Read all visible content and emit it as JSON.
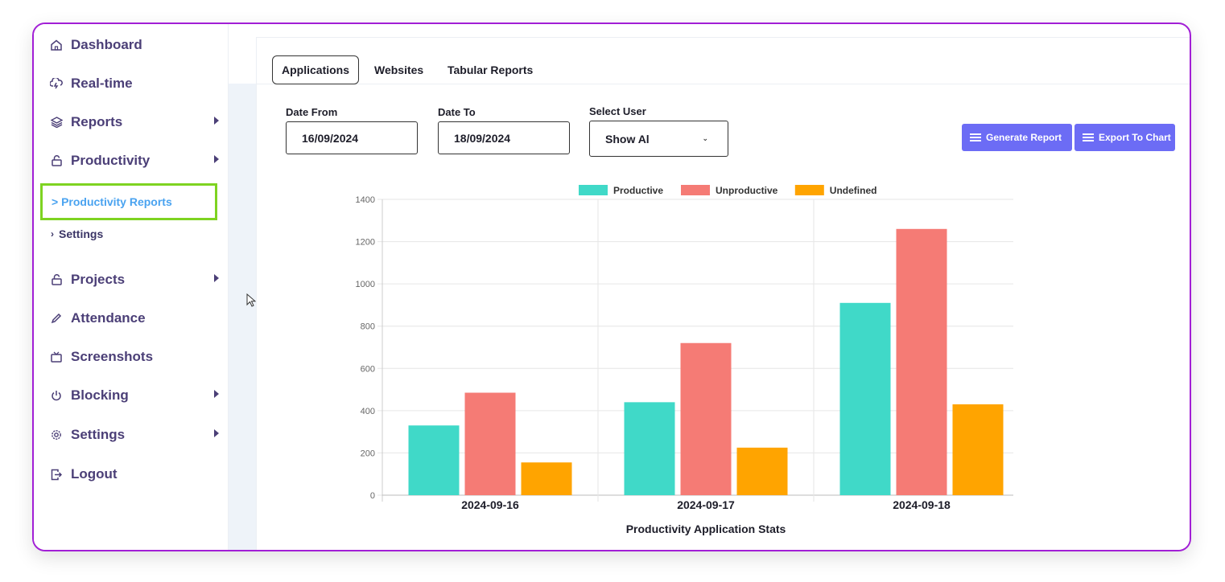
{
  "sidebar": {
    "items": [
      {
        "label": "Dashboard",
        "icon": "home-icon",
        "caret": false
      },
      {
        "label": "Real-time",
        "icon": "cloud-lightning-icon",
        "caret": false
      },
      {
        "label": "Reports",
        "icon": "layers-icon",
        "caret": true
      },
      {
        "label": "Productivity",
        "icon": "unlock-icon",
        "caret": true
      },
      {
        "label": "Projects",
        "icon": "unlock-icon",
        "caret": true
      },
      {
        "label": "Attendance",
        "icon": "pencil-icon",
        "caret": false
      },
      {
        "label": "Screenshots",
        "icon": "tv-icon",
        "caret": false
      },
      {
        "label": "Blocking",
        "icon": "power-icon",
        "caret": true
      },
      {
        "label": "Settings",
        "icon": "gear-icon",
        "caret": true
      },
      {
        "label": "Logout",
        "icon": "logout-icon",
        "caret": false
      }
    ],
    "sub_active": "> Productivity Reports",
    "sub_settings": "Settings",
    "sub_settings_chev": "›",
    "highlight_color": "#7ed321"
  },
  "tabs": [
    {
      "label": "Applications",
      "active": true
    },
    {
      "label": "Websites",
      "active": false
    },
    {
      "label": "Tabular Reports",
      "active": false
    }
  ],
  "filters": {
    "date_from_label": "Date From",
    "date_from_value": "16/09/2024",
    "date_to_label": "Date To",
    "date_to_value": "18/09/2024",
    "user_label": "Select User",
    "user_value": "Show Al",
    "user_chevron": "⌄"
  },
  "actions": {
    "generate_label": "Generate Report",
    "export_label": "Export To Chart",
    "button_color": "#6c6cf5"
  },
  "chart_data": {
    "type": "bar",
    "title": "Productivity Application Stats",
    "categories": [
      "2024-09-16",
      "2024-09-17",
      "2024-09-18"
    ],
    "series": [
      {
        "name": "Productive",
        "color": "#40d9c8",
        "values": [
          330,
          440,
          910
        ]
      },
      {
        "name": "Unproductive",
        "color": "#f57b75",
        "values": [
          485,
          720,
          1260
        ]
      },
      {
        "name": "Undefined",
        "color": "#ffa400",
        "values": [
          155,
          225,
          430
        ]
      }
    ],
    "ylim": [
      0,
      1400
    ],
    "yticks": [
      0,
      200,
      400,
      600,
      800,
      1000,
      1200,
      1400
    ],
    "legend": "top",
    "grid": true
  }
}
